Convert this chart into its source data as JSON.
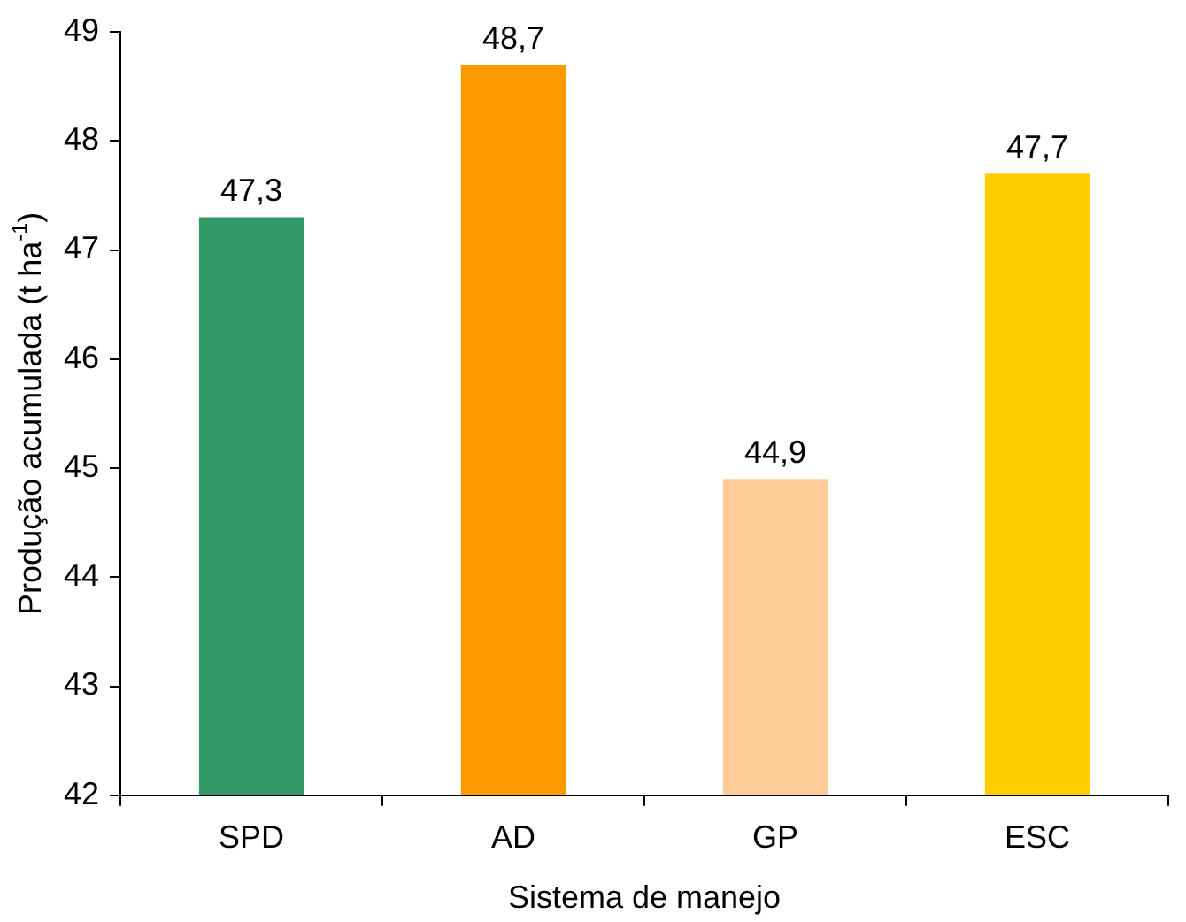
{
  "chart_data": {
    "type": "bar",
    "xlabel": "Sistema de manejo",
    "ylabel": "Produção acumulada (t ha$^{-1}$)",
    "categories": [
      "SPD",
      "AD",
      "GP",
      "ESC"
    ],
    "values": [
      47.3,
      48.7,
      44.9,
      47.7
    ],
    "colors": [
      "#339966",
      "#ff9900",
      "#ffcc99",
      "#ffcc00"
    ],
    "value_labels": [
      "47,3",
      "48,7",
      "44,9",
      "47,7"
    ],
    "ylim": [
      42,
      49
    ],
    "yticks": [
      42,
      43,
      44,
      45,
      46,
      47,
      48,
      49
    ],
    "grid": false,
    "legend": false
  }
}
